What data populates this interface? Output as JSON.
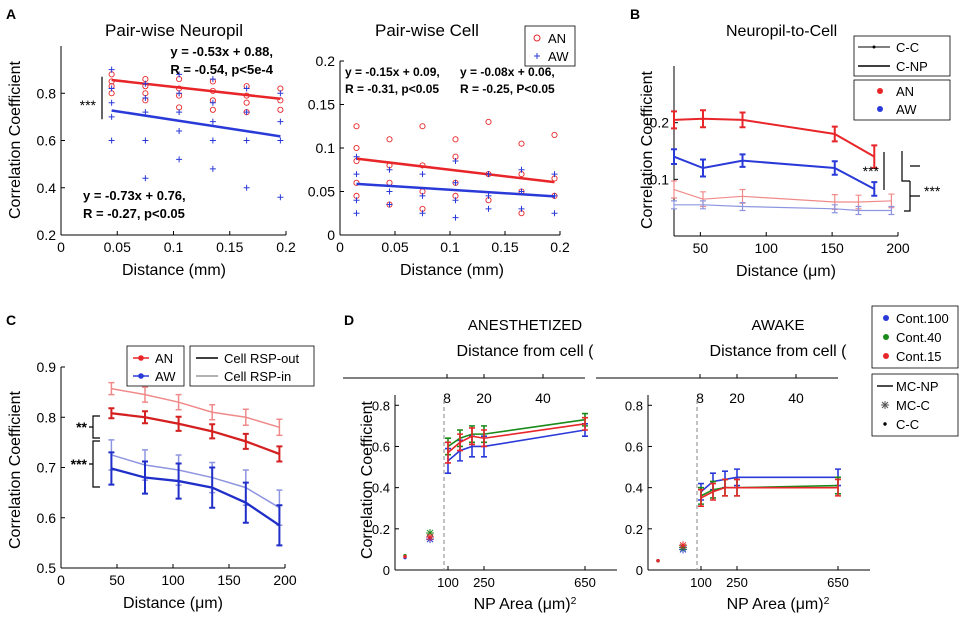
{
  "chart_data": [
    {
      "panel": "A",
      "type": "scatter",
      "title": "Pair-wise Neuropil",
      "xlabel": "Distance (mm)",
      "ylabel": "Correlation Coefficient",
      "xlim": [
        0,
        0.2
      ],
      "ylim": [
        0.2,
        1.0
      ],
      "xticks": [
        0,
        0.05,
        0.1,
        0.15,
        0.2
      ],
      "xtick_labels": [
        "0",
        "0.05",
        "0.1",
        "0.15",
        "0.2"
      ],
      "yticks": [
        0.2,
        0.4,
        0.6,
        0.8
      ],
      "ytick_labels": [
        "0.2",
        "0.4",
        "0.6",
        "0.8"
      ],
      "series": [
        {
          "name": "AN",
          "color": "#e8262a",
          "fit": {
            "slope": -0.53,
            "intercept": 0.88
          },
          "fit_label": [
            "y = -0.53x + 0.88,",
            "R = -0.54, p<5e-4"
          ],
          "points": [
            [
              0.045,
              0.88
            ],
            [
              0.045,
              0.85
            ],
            [
              0.045,
              0.83
            ],
            [
              0.045,
              0.8
            ],
            [
              0.075,
              0.86
            ],
            [
              0.075,
              0.83
            ],
            [
              0.075,
              0.8
            ],
            [
              0.075,
              0.77
            ],
            [
              0.105,
              0.86
            ],
            [
              0.105,
              0.82
            ],
            [
              0.105,
              0.79
            ],
            [
              0.105,
              0.74
            ],
            [
              0.135,
              0.85
            ],
            [
              0.135,
              0.81
            ],
            [
              0.135,
              0.77
            ],
            [
              0.135,
              0.73
            ],
            [
              0.165,
              0.83
            ],
            [
              0.165,
              0.79
            ],
            [
              0.165,
              0.76
            ],
            [
              0.165,
              0.72
            ],
            [
              0.195,
              0.82
            ],
            [
              0.195,
              0.77
            ],
            [
              0.195,
              0.73
            ]
          ]
        },
        {
          "name": "AW",
          "color": "#2a3ad8",
          "fit": {
            "slope": -0.73,
            "intercept": 0.76
          },
          "fit_label": [
            "y = -0.73x + 0.76,",
            "R = -0.27, p<0.05"
          ],
          "points": [
            [
              0.045,
              0.9
            ],
            [
              0.045,
              0.82
            ],
            [
              0.045,
              0.76
            ],
            [
              0.045,
              0.7
            ],
            [
              0.045,
              0.6
            ],
            [
              0.075,
              0.84
            ],
            [
              0.075,
              0.78
            ],
            [
              0.075,
              0.72
            ],
            [
              0.075,
              0.6
            ],
            [
              0.075,
              0.44
            ],
            [
              0.105,
              0.88
            ],
            [
              0.105,
              0.8
            ],
            [
              0.105,
              0.72
            ],
            [
              0.105,
              0.64
            ],
            [
              0.105,
              0.52
            ],
            [
              0.135,
              0.86
            ],
            [
              0.135,
              0.76
            ],
            [
              0.135,
              0.68
            ],
            [
              0.135,
              0.6
            ],
            [
              0.135,
              0.48
            ],
            [
              0.165,
              0.82
            ],
            [
              0.165,
              0.72
            ],
            [
              0.165,
              0.6
            ],
            [
              0.165,
              0.4
            ],
            [
              0.195,
              0.8
            ],
            [
              0.195,
              0.68
            ],
            [
              0.195,
              0.6
            ],
            [
              0.195,
              0.36
            ]
          ]
        }
      ],
      "annotation": "***"
    },
    {
      "panel": "",
      "type": "scatter",
      "title": "Pair-wise Cell",
      "xlabel": "Distance (mm)",
      "ylabel": "",
      "xlim": [
        0,
        0.2
      ],
      "ylim": [
        0,
        0.2
      ],
      "xticks": [
        0,
        0.05,
        0.1,
        0.15,
        0.2
      ],
      "xtick_labels": [
        "0",
        "0.05",
        "0.1",
        "0.15",
        "0.2"
      ],
      "yticks": [
        0,
        0.05,
        0.1,
        0.15,
        0.2
      ],
      "ytick_labels": [
        "0",
        "0.05",
        "0.1",
        "0.15",
        "0.2"
      ],
      "legend": [
        "AN",
        "AW"
      ],
      "series": [
        {
          "name": "AN",
          "color": "#e8262a",
          "fit": {
            "slope": -0.15,
            "intercept": 0.09
          },
          "fit_label": [
            "y = -0.15x + 0.09,",
            "R = -0.31, p<0.05"
          ],
          "points": [
            [
              0.015,
              0.125
            ],
            [
              0.015,
              0.1
            ],
            [
              0.015,
              0.085
            ],
            [
              0.015,
              0.06
            ],
            [
              0.015,
              0.045
            ],
            [
              0.045,
              0.11
            ],
            [
              0.045,
              0.08
            ],
            [
              0.045,
              0.06
            ],
            [
              0.045,
              0.035
            ],
            [
              0.075,
              0.125
            ],
            [
              0.075,
              0.08
            ],
            [
              0.075,
              0.05
            ],
            [
              0.075,
              0.03
            ],
            [
              0.105,
              0.11
            ],
            [
              0.105,
              0.09
            ],
            [
              0.105,
              0.06
            ],
            [
              0.105,
              0.045
            ],
            [
              0.135,
              0.13
            ],
            [
              0.135,
              0.07
            ],
            [
              0.135,
              0.04
            ],
            [
              0.165,
              0.105
            ],
            [
              0.165,
              0.07
            ],
            [
              0.165,
              0.05
            ],
            [
              0.165,
              0.025
            ],
            [
              0.195,
              0.115
            ],
            [
              0.195,
              0.065
            ],
            [
              0.195,
              0.045
            ]
          ]
        },
        {
          "name": "AW",
          "color": "#2a3ad8",
          "fit": {
            "slope": -0.08,
            "intercept": 0.06
          },
          "fit_label": [
            "y = -0.08x + 0.06,",
            "R = -0.25, P<0.05"
          ],
          "points": [
            [
              0.015,
              0.09
            ],
            [
              0.015,
              0.07
            ],
            [
              0.015,
              0.04
            ],
            [
              0.015,
              0.025
            ],
            [
              0.045,
              0.075
            ],
            [
              0.045,
              0.05
            ],
            [
              0.045,
              0.035
            ],
            [
              0.075,
              0.07
            ],
            [
              0.075,
              0.045
            ],
            [
              0.075,
              0.025
            ],
            [
              0.105,
              0.085
            ],
            [
              0.105,
              0.06
            ],
            [
              0.105,
              0.04
            ],
            [
              0.105,
              0.02
            ],
            [
              0.135,
              0.07
            ],
            [
              0.135,
              0.045
            ],
            [
              0.135,
              0.03
            ],
            [
              0.165,
              0.075
            ],
            [
              0.165,
              0.05
            ],
            [
              0.165,
              0.03
            ],
            [
              0.195,
              0.07
            ],
            [
              0.195,
              0.045
            ],
            [
              0.195,
              0.025
            ]
          ]
        }
      ]
    },
    {
      "panel": "B",
      "type": "line",
      "title": "Neuropil-to-Cell",
      "xlabel": "Distance (μm)",
      "ylabel": "Correlation Coefficient",
      "xlim": [
        30,
        200
      ],
      "ylim": [
        0,
        0.3
      ],
      "xticks": [
        50,
        100,
        150,
        200
      ],
      "xtick_labels": [
        "50",
        "100",
        "150",
        "200"
      ],
      "yticks": [
        0.1,
        0.2
      ],
      "ytick_labels": [
        "0.1",
        "0.2"
      ],
      "legend_styles": [
        "C-C",
        "C-NP"
      ],
      "legend_conditions": [
        "AN",
        "AW"
      ],
      "x": [
        30,
        52,
        82,
        152,
        182
      ],
      "series": [
        {
          "name": "AN C-NP",
          "color": "#e8262a",
          "values": [
            0.205,
            0.207,
            0.205,
            0.18,
            0.14
          ],
          "err": [
            0.015,
            0.015,
            0.013,
            0.013,
            0.02
          ]
        },
        {
          "name": "AW C-NP",
          "color": "#2a3ad8",
          "values": [
            0.14,
            0.12,
            0.133,
            0.12,
            0.083
          ],
          "err": [
            0.013,
            0.015,
            0.011,
            0.012,
            0.012
          ]
        },
        {
          "name": "AN C-C",
          "color": "#f08a8a",
          "values": [
            0.082,
            0.065,
            0.07,
            0.06,
            0.06,
            0.062
          ],
          "x": [
            30,
            52,
            82,
            152,
            170,
            195
          ],
          "err": [
            0.015,
            0.013,
            0.012,
            0.013,
            0.012,
            0.012
          ]
        },
        {
          "name": "AW C-C",
          "color": "#8e95e0",
          "values": [
            0.055,
            0.055,
            0.052,
            0.048,
            0.045,
            0.045
          ],
          "x": [
            30,
            52,
            82,
            152,
            170,
            195
          ],
          "err": [
            0.007,
            0.007,
            0.007,
            0.007,
            0.007,
            0.007
          ]
        }
      ],
      "annotations": [
        "***",
        "***"
      ]
    },
    {
      "panel": "C",
      "type": "line",
      "xlabel": "Distance (μm)",
      "ylabel": "Correlation Coefficient",
      "xlim": [
        0,
        200
      ],
      "ylim": [
        0.5,
        0.9
      ],
      "xticks": [
        0,
        50,
        100,
        150,
        200
      ],
      "xtick_labels": [
        "0",
        "50",
        "100",
        "150",
        "200"
      ],
      "yticks": [
        0.5,
        0.6,
        0.7,
        0.8,
        0.9
      ],
      "ytick_labels": [
        "0.5",
        "0.6",
        "0.7",
        "0.8",
        "0.9"
      ],
      "legend_conditions": [
        "AN",
        "AW"
      ],
      "legend_styles": [
        "Cell RSP-out",
        "Cell RSP-in"
      ],
      "x": [
        45,
        75,
        105,
        135,
        165,
        195
      ],
      "series": [
        {
          "name": "AN RSP-in",
          "color": "#f08a8a",
          "values": [
            0.857,
            0.845,
            0.83,
            0.81,
            0.8,
            0.78
          ],
          "err": [
            0.012,
            0.015,
            0.015,
            0.015,
            0.016,
            0.016
          ]
        },
        {
          "name": "AN RSP-out",
          "color": "#d42020",
          "values": [
            0.808,
            0.8,
            0.787,
            0.772,
            0.752,
            0.727
          ],
          "err": [
            0.01,
            0.012,
            0.014,
            0.014,
            0.015,
            0.015
          ]
        },
        {
          "name": "AW RSP-in",
          "color": "#8e95e0",
          "values": [
            0.725,
            0.705,
            0.695,
            0.68,
            0.66,
            0.62
          ],
          "err": [
            0.03,
            0.03,
            0.03,
            0.03,
            0.035,
            0.035
          ]
        },
        {
          "name": "AW RSP-out",
          "color": "#1f2fc8",
          "values": [
            0.698,
            0.68,
            0.673,
            0.66,
            0.63,
            0.585
          ],
          "err": [
            0.032,
            0.032,
            0.035,
            0.04,
            0.04,
            0.04
          ]
        }
      ],
      "annotations": [
        "**",
        "***"
      ]
    },
    {
      "panel": "D",
      "type": "line",
      "title": "ANESTHETIZED",
      "top_axis_label": "Distance from cell (μm)",
      "top_ticks": [
        "8",
        "20",
        "40"
      ],
      "xlabel": "NP Area (μm2)",
      "ylabel": "Correlation Coefficient",
      "xlim": [
        0,
        700
      ],
      "ylim": [
        0,
        0.85
      ],
      "xticks": [
        100,
        250,
        650
      ],
      "xtick_labels": [
        "100",
        "250",
        "650"
      ],
      "yticks": [
        0,
        0.2,
        0.4,
        0.6,
        0.8
      ],
      "ytick_labels": [
        "0",
        "0.2",
        "0.4",
        "0.6",
        "0.8"
      ],
      "x": [
        100,
        150,
        200,
        250,
        650
      ],
      "series": [
        {
          "name": "Cont.100",
          "color": "#2a3ad8",
          "values": [
            0.53,
            0.58,
            0.6,
            0.6,
            0.68
          ],
          "err": [
            0.06,
            0.05,
            0.05,
            0.05,
            0.03
          ],
          "cc": 0.06,
          "mcc": 0.15
        },
        {
          "name": "Cont.40",
          "color": "#1a8a1a",
          "values": [
            0.6,
            0.64,
            0.66,
            0.66,
            0.73
          ],
          "err": [
            0.04,
            0.04,
            0.04,
            0.04,
            0.03
          ],
          "cc": 0.07,
          "mcc": 0.18
        },
        {
          "name": "Cont.15",
          "color": "#e8262a",
          "values": [
            0.57,
            0.62,
            0.65,
            0.64,
            0.71
          ],
          "err": [
            0.05,
            0.04,
            0.04,
            0.04,
            0.03
          ],
          "cc": 0.065,
          "mcc": 0.16
        }
      ]
    },
    {
      "panel": "",
      "type": "line",
      "title": "AWAKE",
      "top_axis_label": "Distance from cell (μm)",
      "top_ticks": [
        "8",
        "20",
        "40"
      ],
      "xlabel": "NP Area (μm2)",
      "ylabel": "",
      "xlim": [
        0,
        700
      ],
      "ylim": [
        0,
        0.85
      ],
      "xticks": [
        100,
        250,
        650
      ],
      "xtick_labels": [
        "100",
        "250",
        "650"
      ],
      "yticks": [
        0,
        0.2,
        0.4,
        0.6,
        0.8
      ],
      "ytick_labels": [
        "0",
        "0.2",
        "0.4",
        "0.6",
        "0.8"
      ],
      "legend": [
        "Cont.100",
        "Cont.40",
        "Cont.15"
      ],
      "legend_styles": [
        "MC-NP",
        "MC-C",
        "C-C"
      ],
      "x": [
        100,
        150,
        200,
        250,
        650
      ],
      "series": [
        {
          "name": "Cont.100",
          "color": "#2a3ad8",
          "values": [
            0.38,
            0.43,
            0.44,
            0.45,
            0.45
          ],
          "err": [
            0.04,
            0.04,
            0.04,
            0.04,
            0.04
          ],
          "cc": 0.045,
          "mcc": 0.1
        },
        {
          "name": "Cont.40",
          "color": "#1a8a1a",
          "values": [
            0.36,
            0.39,
            0.4,
            0.4,
            0.41
          ],
          "err": [
            0.04,
            0.04,
            0.04,
            0.04,
            0.04
          ],
          "cc": 0.045,
          "mcc": 0.11
        },
        {
          "name": "Cont.15",
          "color": "#e8262a",
          "values": [
            0.35,
            0.38,
            0.4,
            0.4,
            0.4
          ],
          "err": [
            0.04,
            0.04,
            0.04,
            0.04,
            0.04
          ],
          "cc": 0.045,
          "mcc": 0.12
        }
      ]
    }
  ]
}
